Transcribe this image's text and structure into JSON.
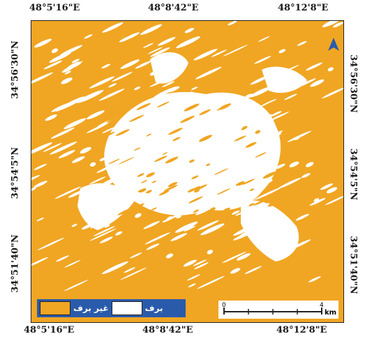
{
  "coords": {
    "top": [
      "48°5'16\"E",
      "48°8'42\"E",
      "48°12'8\"E"
    ],
    "bottom": [
      "48°5'16\"E",
      "48°8'42\"E",
      "48°12'8\"E"
    ],
    "left": [
      "34°56'30\"N",
      "34°54'5\"N",
      "34°51'40\"N"
    ],
    "right": [
      "34°56'30\"N",
      "34°54'5\"N",
      "34°51'40\"N"
    ]
  },
  "legend": {
    "items": [
      {
        "label": "غیر برف",
        "color": "#f0a623"
      },
      {
        "label": "برف",
        "color": "#ffffff"
      }
    ],
    "background": "#2a5bab"
  },
  "scalebar": {
    "start": "0",
    "end": "4",
    "unit": "km"
  },
  "north_arrow": {
    "icon": "north-arrow-icon",
    "color": "#2a5bab"
  }
}
